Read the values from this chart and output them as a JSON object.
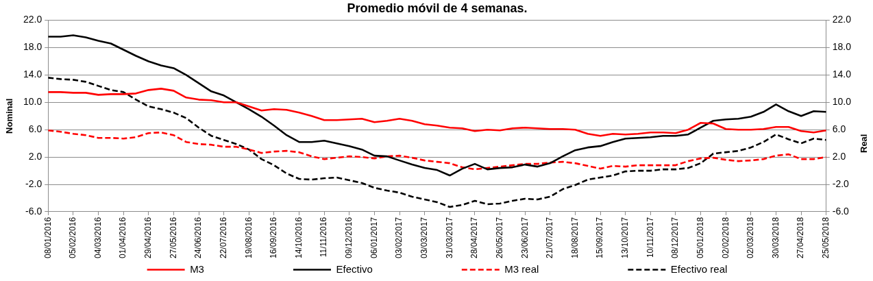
{
  "chart_data": {
    "type": "line",
    "title": "Promedio móvil de 4 semanas.",
    "ylabel": "Nominal",
    "y2label": "Real",
    "x": [
      "2016-01-08",
      "2016-01-22",
      "2016-02-05",
      "2016-02-19",
      "2016-03-04",
      "2016-03-18",
      "2016-04-01",
      "2016-04-15",
      "2016-04-29",
      "2016-05-13",
      "2016-05-27",
      "2016-06-10",
      "2016-06-24",
      "2016-07-08",
      "2016-07-22",
      "2016-08-05",
      "2016-08-19",
      "2016-09-02",
      "2016-09-16",
      "2016-09-30",
      "2016-10-14",
      "2016-10-28",
      "2016-11-11",
      "2016-11-25",
      "2016-12-09",
      "2016-12-23",
      "2017-01-06",
      "2017-01-20",
      "2017-02-03",
      "2017-02-17",
      "2017-03-03",
      "2017-03-17",
      "2017-03-31",
      "2017-04-14",
      "2017-04-28",
      "2017-05-12",
      "2017-05-26",
      "2017-06-09",
      "2017-06-23",
      "2017-07-07",
      "2017-07-21",
      "2017-08-04",
      "2017-08-18",
      "2017-09-01",
      "2017-09-15",
      "2017-09-29",
      "2017-10-13",
      "2017-10-27",
      "2017-11-10",
      "2017-11-24",
      "2017-12-08",
      "2017-12-22",
      "2018-01-05",
      "2018-01-19",
      "2018-02-02",
      "2018-02-16",
      "2018-03-02",
      "2018-03-16",
      "2018-03-30",
      "2018-04-13",
      "2018-04-27",
      "2018-05-11",
      "2018-05-25"
    ],
    "xlim": [
      "2016-01-08",
      "2018-05-25"
    ],
    "xticks": [
      {
        "value": "2016-01-08",
        "label": "08/01/2016"
      },
      {
        "value": "2016-02-05",
        "label": "05/02/2016"
      },
      {
        "value": "2016-03-04",
        "label": "04/03/2016"
      },
      {
        "value": "2016-04-01",
        "label": "01/04/2016"
      },
      {
        "value": "2016-04-29",
        "label": "29/04/2016"
      },
      {
        "value": "2016-05-27",
        "label": "27/05/2016"
      },
      {
        "value": "2016-06-24",
        "label": "24/06/2016"
      },
      {
        "value": "2016-07-22",
        "label": "22/07/2016"
      },
      {
        "value": "2016-08-19",
        "label": "19/08/2016"
      },
      {
        "value": "2016-09-16",
        "label": "16/09/2016"
      },
      {
        "value": "2016-10-14",
        "label": "14/10/2016"
      },
      {
        "value": "2016-11-11",
        "label": "11/11/2016"
      },
      {
        "value": "2016-12-09",
        "label": "09/12/2016"
      },
      {
        "value": "2017-01-06",
        "label": "06/01/2017"
      },
      {
        "value": "2017-02-03",
        "label": "03/02/2017"
      },
      {
        "value": "2017-03-03",
        "label": "03/03/2017"
      },
      {
        "value": "2017-03-31",
        "label": "31/03/2017"
      },
      {
        "value": "2017-04-28",
        "label": "28/04/2017"
      },
      {
        "value": "2017-05-26",
        "label": "26/05/2017"
      },
      {
        "value": "2017-06-23",
        "label": "23/06/2017"
      },
      {
        "value": "2017-07-21",
        "label": "21/07/2017"
      },
      {
        "value": "2017-08-18",
        "label": "18/08/2017"
      },
      {
        "value": "2017-09-15",
        "label": "15/09/2017"
      },
      {
        "value": "2017-10-13",
        "label": "13/10/2017"
      },
      {
        "value": "2017-11-10",
        "label": "10/11/2017"
      },
      {
        "value": "2017-12-08",
        "label": "08/12/2017"
      },
      {
        "value": "2018-01-05",
        "label": "05/01/2018"
      },
      {
        "value": "2018-02-02",
        "label": "02/02/2018"
      },
      {
        "value": "2018-03-02",
        "label": "02/03/2018"
      },
      {
        "value": "2018-03-30",
        "label": "30/03/2018"
      },
      {
        "value": "2018-04-27",
        "label": "27/04/2018"
      },
      {
        "value": "2018-05-25",
        "label": "25/05/2018"
      }
    ],
    "ylim": [
      -6,
      22
    ],
    "yticks": [
      {
        "value": -6,
        "label": "-6.0"
      },
      {
        "value": -2,
        "label": "-2.0"
      },
      {
        "value": 2,
        "label": "2.0"
      },
      {
        "value": 6,
        "label": "6.0"
      },
      {
        "value": 10,
        "label": "10.0"
      },
      {
        "value": 14,
        "label": "14.0"
      },
      {
        "value": 18,
        "label": "18.0"
      },
      {
        "value": 22,
        "label": "22.0"
      }
    ],
    "y2lim": [
      -6,
      22
    ],
    "y2ticks": [
      {
        "value": -6,
        "label": "-6.0"
      },
      {
        "value": -2,
        "label": "-2.0"
      },
      {
        "value": 2,
        "label": "2.0"
      },
      {
        "value": 6,
        "label": "6.0"
      },
      {
        "value": 10,
        "label": "10.0"
      },
      {
        "value": 14,
        "label": "14.0"
      },
      {
        "value": 18,
        "label": "18.0"
      },
      {
        "value": 22,
        "label": "22.0"
      }
    ],
    "grid": "y",
    "legend": "bottom",
    "marker": "none",
    "line_style": "solid",
    "series": [
      {
        "name": "M3",
        "color": "#ff0000",
        "values": [
          11.5,
          11.5,
          11.4,
          11.4,
          11.1,
          11.2,
          11.2,
          11.3,
          11.8,
          12.0,
          11.7,
          10.7,
          10.4,
          10.3,
          10.0,
          10.0,
          9.4,
          8.8,
          9.0,
          8.9,
          8.5,
          8.0,
          7.4,
          7.4,
          7.5,
          7.6,
          7.1,
          7.3,
          7.6,
          7.3,
          6.8,
          6.6,
          6.3,
          6.2,
          5.8,
          6.0,
          5.9,
          6.2,
          6.3,
          6.2,
          6.1,
          6.1,
          6.0,
          5.4,
          5.1,
          5.4,
          5.3,
          5.4,
          5.6,
          5.6,
          5.5,
          6.0,
          7.0,
          6.9,
          6.1,
          6.0,
          6.0,
          6.1,
          6.4,
          6.4,
          5.8,
          5.6,
          5.9
        ]
      },
      {
        "name": "Efectivo",
        "color": "#000000",
        "values": [
          19.6,
          19.6,
          19.8,
          19.5,
          19.0,
          18.6,
          17.7,
          16.8,
          16.0,
          15.4,
          15.0,
          14.0,
          12.8,
          11.6,
          11.0,
          10.0,
          9.0,
          7.9,
          6.6,
          5.2,
          4.2,
          4.2,
          4.4,
          4.0,
          3.6,
          3.1,
          2.2,
          2.1,
          1.5,
          0.9,
          0.4,
          0.1,
          -0.7,
          0.3,
          1.0,
          0.2,
          0.4,
          0.5,
          0.9,
          0.6,
          1.1,
          2.1,
          3.0,
          3.4,
          3.6,
          4.2,
          4.7,
          4.8,
          4.9,
          5.1,
          5.1,
          5.3,
          6.3,
          7.3,
          7.5,
          7.6,
          7.9,
          8.6,
          9.7,
          8.7,
          8.0,
          8.7,
          8.6
        ]
      },
      {
        "name": "M3 real",
        "color": "#ff0000",
        "line_style": "dashed",
        "values": [
          5.9,
          5.7,
          5.4,
          5.2,
          4.8,
          4.8,
          4.7,
          4.9,
          5.5,
          5.6,
          5.2,
          4.2,
          3.9,
          3.8,
          3.5,
          3.5,
          3.1,
          2.6,
          2.8,
          2.9,
          2.7,
          2.1,
          1.7,
          1.9,
          2.1,
          2.0,
          1.8,
          2.1,
          2.2,
          1.9,
          1.5,
          1.3,
          1.1,
          0.5,
          0.2,
          0.4,
          0.6,
          0.8,
          1.0,
          1.0,
          1.2,
          1.3,
          1.1,
          0.7,
          0.3,
          0.7,
          0.6,
          0.8,
          0.8,
          0.8,
          0.8,
          1.4,
          1.8,
          1.9,
          1.6,
          1.4,
          1.5,
          1.7,
          2.2,
          2.4,
          1.7,
          1.7,
          2.0
        ]
      },
      {
        "name": "Efectivo real",
        "color": "#000000",
        "line_style": "dashed",
        "values": [
          13.6,
          13.4,
          13.3,
          13.0,
          12.4,
          11.8,
          11.5,
          10.4,
          9.4,
          9.0,
          8.5,
          7.7,
          6.3,
          5.1,
          4.5,
          3.9,
          3.1,
          1.7,
          0.8,
          -0.4,
          -1.2,
          -1.3,
          -1.1,
          -1.0,
          -1.4,
          -1.8,
          -2.5,
          -2.9,
          -3.2,
          -3.8,
          -4.2,
          -4.6,
          -5.3,
          -5.0,
          -4.4,
          -4.9,
          -4.8,
          -4.4,
          -4.1,
          -4.2,
          -3.8,
          -2.7,
          -2.1,
          -1.3,
          -1.0,
          -0.7,
          -0.1,
          0.0,
          0.0,
          0.2,
          0.2,
          0.4,
          1.1,
          2.5,
          2.7,
          2.9,
          3.4,
          4.2,
          5.3,
          4.6,
          4.0,
          4.7,
          4.5
        ]
      }
    ]
  }
}
